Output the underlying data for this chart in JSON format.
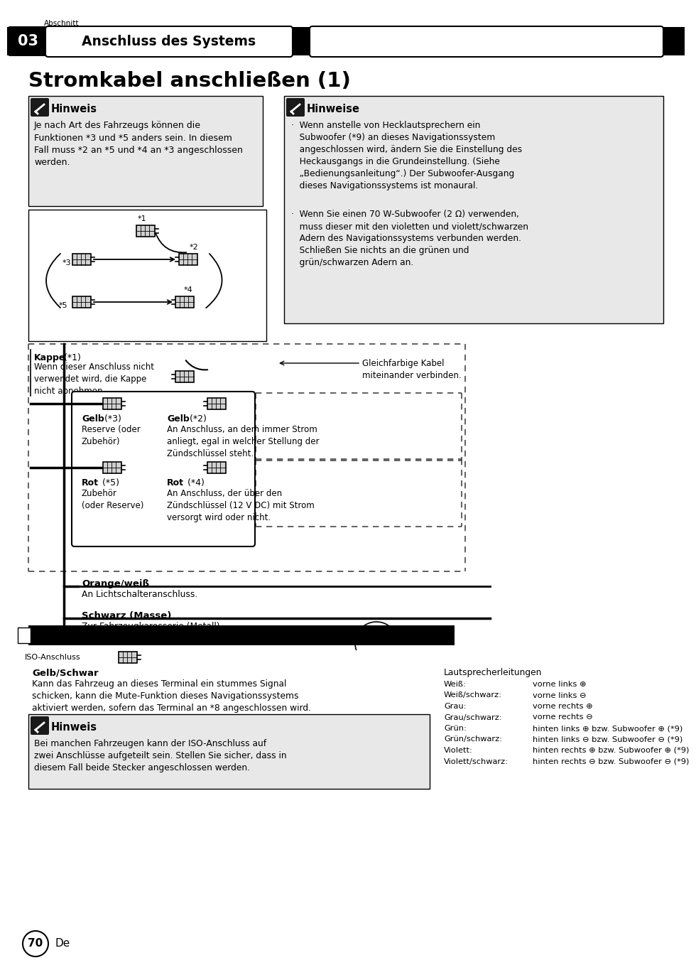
{
  "page_bg": "#ffffff",
  "section_label": "Abschnitt",
  "section_num": "03",
  "section_title": "Anschluss des Systems",
  "page_title": "Stromkabel anschließen (1)",
  "page_num": "70",
  "page_num_suffix": "De",
  "hinweis1_title": "Hinweis",
  "hinweis1_body": "Je nach Art des Fahrzeugs können die\nFunktionen *3 und *5 anders sein. In diesem\nFall muss *2 an *5 und *4 an *3 angeschlossen\nwerden.",
  "hinweise2_title": "Hinweise",
  "hinweise2_body1": "·  Wenn anstelle von Hecklautsprechern ein\n   Subwoofer (*9) an dieses Navigationssystem\n   angeschlossen wird, ändern Sie die Einstellung des\n   Heckausgangs in die Grundeinstellung. (Siehe\n   „Bedienungsanleitung“.) Der Subwoofer-Ausgang\n   dieses Navigationssystems ist monaural.",
  "hinweise2_body2": "·  Wenn Sie einen 70 W-Subwoofer (2 Ω) verwenden,\n   muss dieser mit den violetten und violett/schwarzen\n   Adern des Navigationssystems verbunden werden.\n   Schließen Sie nichts an die grünen und\n   grün/schwarzen Adern an.",
  "gleichfarbige": "Gleichfarbige Kabel\nmiteinander verbinden.",
  "kappe_title_bold": "Kappe",
  "kappe_title_rest": " (*1)",
  "kappe_body": "Wenn dieser Anschluss nicht\nverwendet wird, die Kappe\nnicht abnehmen.",
  "gelb3_title": "Gelb",
  "gelb3_title_rest": " (*3)",
  "gelb3_body": "Reserve (oder\nZubehör)",
  "gelb2_title": "Gelb",
  "gelb2_title_rest": " (*2)",
  "gelb2_body": "An Anschluss, an dem immer Strom\nanliegt, egal in welcher Stellung der\nZündschlüssel steht.",
  "rot5_title": "Rot",
  "rot5_title_rest": " (*5)",
  "rot5_body": "Zubehör\n(oder Reserve)",
  "rot4_title": "Rot",
  "rot4_title_rest": " (*4)",
  "rot4_body": "An Anschluss, der über den\nZündschlüssel (12 V DC) mit Strom\nversorgt wird oder nicht.",
  "orange_title": "Orange/weiß",
  "orange_body": "An Lichtschalteranschluss.",
  "schwarz_title": "Schwarz (Masse)",
  "schwarz_body": "Zur Fahrzeugkarosserie (Metall).",
  "iso_label": "ISO-Anschluss",
  "gelb_schwarz_title": "Gelb/Schwar",
  "gelb_schwarz_body": "Kann das Fahrzeug an dieses Terminal ein stummes Signal\nschicken, kann die Mute-Funktion dieses Navigationssystems\naktiviert werden, sofern das Terminal an *8 angeschlossen wird.",
  "hinweis3_title": "Hinweis",
  "hinweis3_body": "Bei manchen Fahrzeugen kann der ISO-Anschluss auf\nzwei Anschlüsse aufgeteilt sein. Stellen Sie sicher, dass in\ndiesem Fall beide Stecker angeschlossen werden.",
  "lautsp_header": "Lautsprecherleitungen",
  "lautsp_lines": [
    [
      "Weiß:",
      "vorne links ⊕"
    ],
    [
      "Weiß/schwarz:",
      "vorne links ⊖"
    ],
    [
      "Grau:",
      "vorne rechts ⊕"
    ],
    [
      "Grau/schwarz:",
      "vorne rechts ⊖"
    ],
    [
      "Grün:",
      "hinten links ⊕ bzw. Subwoofer ⊕ (*9)"
    ],
    [
      "Grün/schwarz:",
      "hinten links ⊖ bzw. Subwoofer ⊖ (*9)"
    ],
    [
      "Violett:",
      "hinten rechts ⊕ bzw. Subwoofer ⊕ (*9)"
    ],
    [
      "Violett/schwarz:",
      "hinten rechts ⊖ bzw. Subwoofer ⊖ (*9)"
    ]
  ],
  "box_bg": "#e8e8e8",
  "box_border": "#000000",
  "dashed_color": "#444444",
  "line_color": "#000000"
}
